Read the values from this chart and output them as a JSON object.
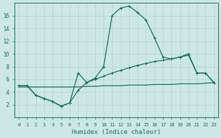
{
  "xlabel": "Humidex (Indice chaleur)",
  "bg_color": "#cde8e4",
  "grid_color": "#b0d4ce",
  "line_color": "#1a6b5a",
  "xlim": [
    -0.5,
    23.5
  ],
  "ylim": [
    0,
    18
  ],
  "xticks": [
    0,
    1,
    2,
    3,
    4,
    5,
    6,
    7,
    8,
    9,
    10,
    11,
    12,
    13,
    14,
    15,
    16,
    17,
    18,
    19,
    20,
    21,
    22,
    23
  ],
  "yticks": [
    2,
    4,
    6,
    8,
    10,
    12,
    14,
    16
  ],
  "line1_x": [
    0,
    1,
    2,
    3,
    4,
    5,
    6,
    7,
    8,
    9,
    10,
    11,
    12,
    13,
    14,
    15,
    16,
    17,
    18,
    19,
    20,
    21,
    22,
    23
  ],
  "line1_y": [
    5.0,
    5.0,
    3.5,
    3.0,
    2.5,
    1.8,
    2.3,
    7.0,
    5.5,
    6.2,
    8.0,
    16.0,
    17.2,
    17.5,
    16.5,
    15.3,
    12.5,
    9.5,
    9.2,
    9.5,
    10.0,
    7.0,
    7.0,
    5.5
  ],
  "line2_x": [
    0,
    1,
    2,
    3,
    4,
    5,
    6,
    7,
    8,
    9,
    10,
    11,
    12,
    13,
    14,
    15,
    16,
    17,
    18,
    19,
    20,
    21,
    22,
    23
  ],
  "line2_y": [
    5.0,
    5.0,
    3.5,
    3.0,
    2.5,
    1.8,
    2.3,
    4.3,
    5.5,
    6.0,
    6.5,
    7.0,
    7.4,
    7.8,
    8.2,
    8.5,
    8.8,
    9.0,
    9.2,
    9.5,
    9.8,
    7.0,
    7.0,
    5.5
  ],
  "line3_x": [
    0,
    1,
    2,
    3,
    4,
    5,
    6,
    7,
    8,
    9,
    10,
    11,
    12,
    13,
    14,
    15,
    16,
    17,
    18,
    19,
    20,
    21,
    22,
    23
  ],
  "line3_y": [
    4.8,
    4.8,
    4.8,
    4.8,
    4.8,
    4.8,
    4.8,
    4.8,
    4.9,
    4.9,
    5.0,
    5.0,
    5.0,
    5.1,
    5.1,
    5.1,
    5.2,
    5.2,
    5.2,
    5.3,
    5.3,
    5.3,
    5.4,
    5.5
  ]
}
